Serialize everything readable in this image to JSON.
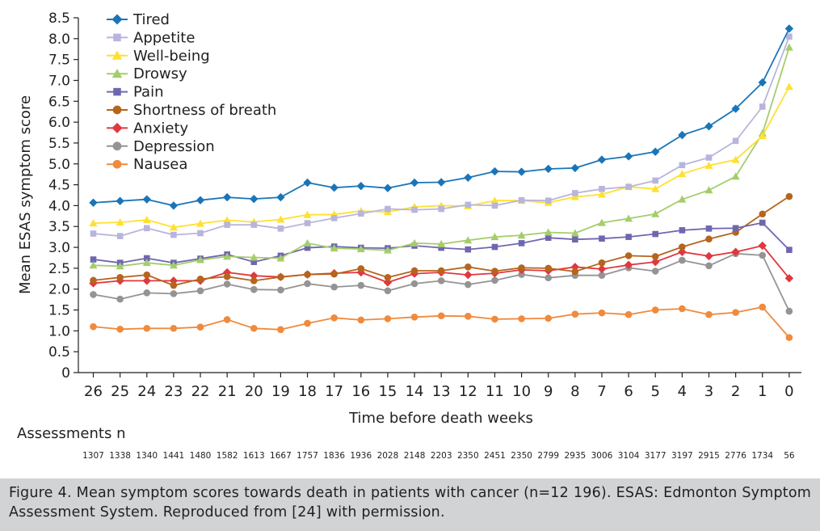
{
  "chart_data": {
    "type": "line",
    "title": "",
    "xlabel": "Time before death weeks",
    "ylabel": "Mean ESAS symptom score",
    "ylim": [
      0,
      8.5
    ],
    "yticks": [
      "0",
      "0.5",
      "1.0",
      "1.5",
      "2.0",
      "2.5",
      "3.0",
      "3.5",
      "4.0",
      "4.5",
      "5.0",
      "5.5",
      "6.0",
      "6.5",
      "7.0",
      "7.5",
      "8.0",
      "8.5"
    ],
    "categories": [
      "26",
      "25",
      "24",
      "23",
      "22",
      "21",
      "20",
      "19",
      "18",
      "17",
      "16",
      "15",
      "14",
      "13",
      "12",
      "11",
      "10",
      "9",
      "8",
      "7",
      "6",
      "5",
      "4",
      "3",
      "2",
      "1",
      "0"
    ],
    "legend_position": "top-left",
    "series": [
      {
        "name": "Tired",
        "color": "#1a75b8",
        "marker": "diamond",
        "values": [
          4.07,
          4.11,
          4.15,
          4.0,
          4.13,
          4.2,
          4.16,
          4.2,
          4.55,
          4.43,
          4.47,
          4.42,
          4.55,
          4.56,
          4.67,
          4.82,
          4.81,
          4.88,
          4.9,
          5.1,
          5.18,
          5.29,
          5.69,
          5.9,
          6.32,
          6.95,
          8.24
        ]
      },
      {
        "name": "Appetite",
        "color": "#b8b5dc",
        "marker": "square",
        "values": [
          3.33,
          3.27,
          3.46,
          3.3,
          3.34,
          3.54,
          3.54,
          3.45,
          3.58,
          3.7,
          3.81,
          3.92,
          3.9,
          3.92,
          4.02,
          4.0,
          4.13,
          4.12,
          4.3,
          4.4,
          4.45,
          4.6,
          4.97,
          5.15,
          5.55,
          6.37,
          8.05
        ]
      },
      {
        "name": "Well-being",
        "color": "#ffe030",
        "marker": "triangle",
        "values": [
          3.58,
          3.6,
          3.66,
          3.48,
          3.57,
          3.65,
          3.61,
          3.67,
          3.78,
          3.79,
          3.87,
          3.85,
          3.97,
          4.0,
          3.99,
          4.12,
          4.12,
          4.07,
          4.21,
          4.27,
          4.45,
          4.4,
          4.76,
          4.96,
          5.1,
          5.67,
          6.85
        ]
      },
      {
        "name": "Drowsy",
        "color": "#a5cd6b",
        "marker": "triangle",
        "values": [
          2.57,
          2.55,
          2.63,
          2.57,
          2.7,
          2.78,
          2.76,
          2.74,
          3.1,
          2.98,
          2.96,
          2.93,
          3.1,
          3.08,
          3.17,
          3.25,
          3.29,
          3.36,
          3.34,
          3.59,
          3.69,
          3.8,
          4.15,
          4.37,
          4.7,
          5.73,
          7.79
        ]
      },
      {
        "name": "Pain",
        "color": "#6e67b0",
        "marker": "square",
        "values": [
          2.71,
          2.63,
          2.74,
          2.63,
          2.73,
          2.83,
          2.65,
          2.8,
          2.99,
          3.02,
          2.99,
          2.98,
          3.04,
          2.99,
          2.95,
          3.01,
          3.1,
          3.23,
          3.19,
          3.21,
          3.25,
          3.32,
          3.41,
          3.45,
          3.46,
          3.59,
          2.94
        ]
      },
      {
        "name": "Shortness of breath",
        "color": "#b5651d",
        "marker": "circle",
        "values": [
          2.21,
          2.28,
          2.34,
          2.09,
          2.24,
          2.3,
          2.2,
          2.29,
          2.35,
          2.36,
          2.49,
          2.28,
          2.44,
          2.44,
          2.53,
          2.43,
          2.51,
          2.5,
          2.42,
          2.63,
          2.8,
          2.78,
          3.01,
          3.2,
          3.36,
          3.8,
          4.22
        ]
      },
      {
        "name": "Anxiety",
        "color": "#e0383e",
        "marker": "diamond",
        "values": [
          2.14,
          2.2,
          2.2,
          2.2,
          2.2,
          2.4,
          2.32,
          2.29,
          2.35,
          2.38,
          2.4,
          2.16,
          2.37,
          2.4,
          2.34,
          2.38,
          2.46,
          2.44,
          2.53,
          2.48,
          2.58,
          2.65,
          2.89,
          2.79,
          2.89,
          3.04,
          2.26
        ]
      },
      {
        "name": "Depression",
        "color": "#949494",
        "marker": "circle",
        "values": [
          1.87,
          1.76,
          1.91,
          1.89,
          1.96,
          2.12,
          1.99,
          1.98,
          2.13,
          2.05,
          2.09,
          1.96,
          2.13,
          2.2,
          2.11,
          2.21,
          2.35,
          2.27,
          2.33,
          2.33,
          2.51,
          2.43,
          2.69,
          2.56,
          2.85,
          2.81,
          1.47
        ]
      },
      {
        "name": "Nausea",
        "color": "#f08a3c",
        "marker": "circle",
        "values": [
          1.1,
          1.04,
          1.06,
          1.06,
          1.09,
          1.27,
          1.06,
          1.03,
          1.18,
          1.31,
          1.26,
          1.29,
          1.33,
          1.36,
          1.35,
          1.28,
          1.29,
          1.3,
          1.4,
          1.43,
          1.39,
          1.5,
          1.53,
          1.39,
          1.44,
          1.57,
          0.84
        ]
      }
    ],
    "assessments_label": "Assessments n",
    "assessments": [
      "1307",
      "1338",
      "1340",
      "1441",
      "1480",
      "1582",
      "1613",
      "1667",
      "1757",
      "1836",
      "1936",
      "2028",
      "2148",
      "2203",
      "2350",
      "2451",
      "2350",
      "2799",
      "2935",
      "3006",
      "3104",
      "3177",
      "3197",
      "2915",
      "2776",
      "1734",
      "56"
    ]
  },
  "caption": "Figure 4. Mean symptom scores towards death in patients with cancer (n=12 196). ESAS: Edmonton Symptom Assessment System. Reproduced from [24] with permission."
}
